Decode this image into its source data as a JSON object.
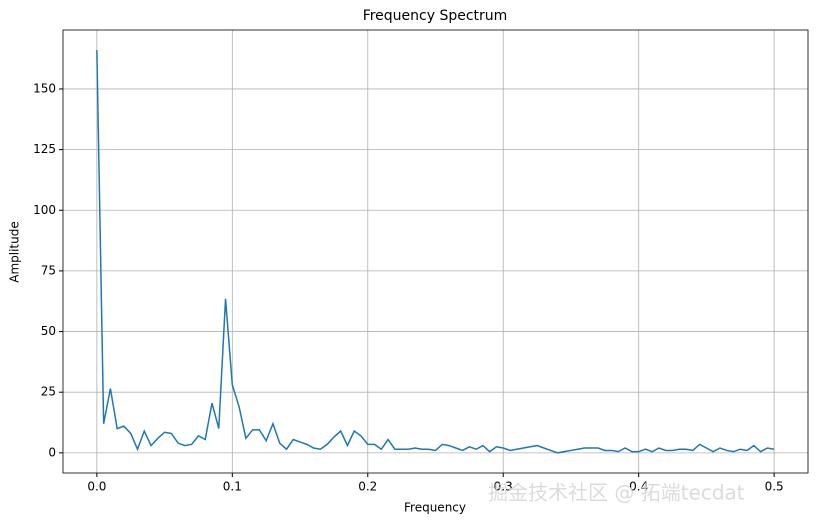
{
  "chart_data": {
    "type": "line",
    "title": "Frequency Spectrum",
    "x_label": "Frequency",
    "y_label": "Amplitude",
    "x": [
      0,
      0.005,
      0.01,
      0.015,
      0.02,
      0.025,
      0.03,
      0.035,
      0.04,
      0.045,
      0.05,
      0.055,
      0.06,
      0.065,
      0.07,
      0.075,
      0.08,
      0.085,
      0.09,
      0.095,
      0.1,
      0.105,
      0.11,
      0.115,
      0.12,
      0.125,
      0.13,
      0.135,
      0.14,
      0.145,
      0.15,
      0.155,
      0.16,
      0.165,
      0.17,
      0.175,
      0.18,
      0.185,
      0.19,
      0.195,
      0.2,
      0.205,
      0.21,
      0.215,
      0.22,
      0.225,
      0.23,
      0.235,
      0.24,
      0.245,
      0.25,
      0.255,
      0.26,
      0.265,
      0.27,
      0.275,
      0.28,
      0.285,
      0.29,
      0.295,
      0.3,
      0.305,
      0.31,
      0.315,
      0.32,
      0.325,
      0.33,
      0.335,
      0.34,
      0.345,
      0.35,
      0.355,
      0.36,
      0.365,
      0.37,
      0.375,
      0.38,
      0.385,
      0.39,
      0.395,
      0.4,
      0.405,
      0.41,
      0.415,
      0.42,
      0.425,
      0.43,
      0.435,
      0.44,
      0.445,
      0.45,
      0.455,
      0.46,
      0.465,
      0.47,
      0.475,
      0.48,
      0.485,
      0.49,
      0.495,
      0.5
    ],
    "series": [
      {
        "color": "#1f77b4",
        "values": [
          166,
          12,
          26.5,
          10,
          11,
          8,
          1.5,
          9,
          3,
          6,
          8.5,
          8,
          4,
          3,
          3.5,
          7,
          5.5,
          20.5,
          10,
          63.5,
          28,
          19,
          6,
          9.5,
          9.5,
          5,
          12,
          4,
          1.5,
          5.5,
          4.5,
          3.5,
          2,
          1.5,
          3.5,
          6.5,
          9,
          3,
          9,
          7,
          3.5,
          3.5,
          1.5,
          5.5,
          1.5,
          1.5,
          1.5,
          2,
          1.5,
          1.5,
          1,
          3.5,
          3,
          2,
          1,
          2.5,
          1.5,
          3,
          0.5,
          2.5,
          2,
          1,
          1.5,
          2,
          2.5,
          3,
          2,
          1,
          0,
          0.5,
          1,
          1.5,
          2,
          2,
          2,
          1,
          1,
          0.5,
          2,
          0.5,
          0.5,
          1.5,
          0.5,
          2,
          1,
          1,
          1.5,
          1.5,
          1,
          3.5,
          2,
          0.5,
          2,
          1,
          0.5,
          1.5,
          1,
          3,
          0.5,
          2,
          1.5
        ]
      }
    ],
    "xlim": [
      -0.025,
      0.525
    ],
    "ylim": [
      -8.3,
      174.3
    ],
    "xticks": [
      {
        "value": 0,
        "label": "0.0"
      },
      0.1,
      0.2,
      0.3,
      0.4,
      {
        "value": 0.5,
        "label": "0.5"
      }
    ],
    "yticks": [
      0,
      25,
      50,
      75,
      100,
      125,
      150
    ],
    "grid": true,
    "watermark": "掘金技术社区 @ 拓端tecdat"
  }
}
